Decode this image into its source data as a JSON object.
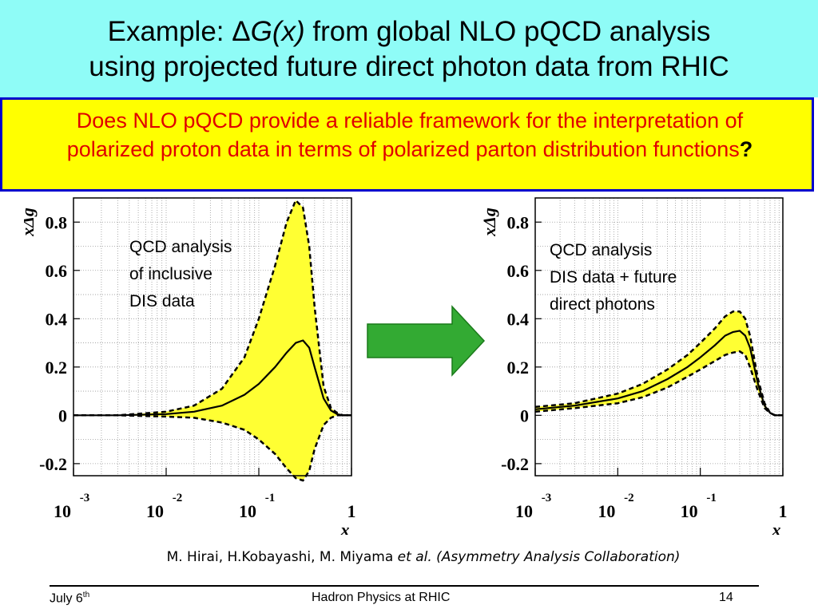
{
  "slide": {
    "title": {
      "prefix": "Example: Δ",
      "func": "G(x)",
      "rest": " from global NLO pQCD analysis",
      "line2": "using projected future direct photon data from RHIC"
    },
    "callout": {
      "text": "Does NLO pQCD provide a reliable framework for the interpretation of polarized proton data in terms of polarized parton distribution functions",
      "mark": "?"
    },
    "citation": {
      "authors": "M. Hirai, H.Kobayashi, M. Miyama ",
      "etal": "et al. (Asymmetry Analysis Collaboration)"
    },
    "footer": {
      "date": "July 6",
      "date_sup": "th",
      "center": "Hadron Physics at RHIC",
      "page": "14"
    },
    "colors": {
      "header_bg": "#8ffcf7",
      "callout_bg": "#ffff00",
      "callout_border": "#0000cc",
      "callout_text": "#e00000",
      "band_fill": "#ffff33",
      "arrow": "#33aa33"
    }
  },
  "chart_data": [
    {
      "type": "line",
      "annotation": [
        "QCD analysis",
        "of inclusive",
        "DIS data"
      ],
      "ylabel": "xΔg",
      "xlabel": "x",
      "xscale": "log",
      "xlim": [
        0.001,
        1
      ],
      "ylim": [
        -0.25,
        0.9
      ],
      "yticks": [
        "0.8",
        "0.6",
        "0.4",
        "0.2",
        "0",
        "-0.2"
      ],
      "ytick_values": [
        0.8,
        0.6,
        0.4,
        0.2,
        0,
        -0.2
      ],
      "xticks": [
        {
          "base": "10",
          "exp": "-3"
        },
        {
          "base": "10",
          "exp": "-2"
        },
        {
          "base": "10",
          "exp": "-1"
        },
        {
          "base": "1",
          "exp": ""
        }
      ],
      "x": [
        0.001,
        0.003,
        0.01,
        0.02,
        0.04,
        0.07,
        0.1,
        0.15,
        0.2,
        0.25,
        0.3,
        0.35,
        0.4,
        0.5,
        0.6,
        0.7,
        0.8,
        1.0
      ],
      "series": [
        {
          "role": "central",
          "values": [
            0,
            0,
            0.005,
            0.015,
            0.04,
            0.085,
            0.13,
            0.2,
            0.26,
            0.3,
            0.31,
            0.28,
            0.2,
            0.07,
            0.02,
            0.005,
            0,
            0
          ]
        },
        {
          "role": "upper",
          "values": [
            0,
            0,
            0.015,
            0.04,
            0.11,
            0.24,
            0.4,
            0.62,
            0.8,
            0.89,
            0.86,
            0.7,
            0.45,
            0.12,
            0.03,
            0.01,
            0,
            0
          ]
        },
        {
          "role": "lower",
          "values": [
            0,
            0,
            -0.005,
            -0.01,
            -0.03,
            -0.06,
            -0.1,
            -0.16,
            -0.22,
            -0.26,
            -0.27,
            -0.23,
            -0.14,
            -0.04,
            -0.01,
            0,
            0,
            0
          ]
        }
      ]
    },
    {
      "type": "line",
      "annotation": [
        "QCD analysis",
        "DIS data + future",
        "direct photons"
      ],
      "ylabel": "xΔg",
      "xlabel": "x",
      "xscale": "log",
      "xlim": [
        0.001,
        1
      ],
      "ylim": [
        -0.25,
        0.9
      ],
      "yticks": [
        "0.8",
        "0.6",
        "0.4",
        "0.2",
        "0",
        "-0.2"
      ],
      "ytick_values": [
        0.8,
        0.6,
        0.4,
        0.2,
        0,
        -0.2
      ],
      "xticks": [
        {
          "base": "10",
          "exp": "-3"
        },
        {
          "base": "10",
          "exp": "-2"
        },
        {
          "base": "10",
          "exp": "-1"
        },
        {
          "base": "1",
          "exp": ""
        }
      ],
      "x": [
        0.001,
        0.003,
        0.01,
        0.02,
        0.04,
        0.07,
        0.1,
        0.15,
        0.2,
        0.25,
        0.3,
        0.35,
        0.4,
        0.5,
        0.6,
        0.7,
        0.8,
        1.0
      ],
      "series": [
        {
          "role": "central",
          "values": [
            0.025,
            0.04,
            0.07,
            0.1,
            0.15,
            0.2,
            0.24,
            0.29,
            0.33,
            0.345,
            0.35,
            0.33,
            0.28,
            0.13,
            0.04,
            0.01,
            0,
            0
          ]
        },
        {
          "role": "upper",
          "values": [
            0.035,
            0.05,
            0.09,
            0.13,
            0.19,
            0.25,
            0.3,
            0.36,
            0.41,
            0.43,
            0.43,
            0.4,
            0.33,
            0.15,
            0.05,
            0.01,
            0,
            0
          ]
        },
        {
          "role": "lower",
          "values": [
            0.015,
            0.03,
            0.05,
            0.075,
            0.115,
            0.16,
            0.19,
            0.225,
            0.25,
            0.26,
            0.265,
            0.25,
            0.2,
            0.1,
            0.03,
            0.01,
            0,
            0
          ]
        }
      ]
    }
  ]
}
